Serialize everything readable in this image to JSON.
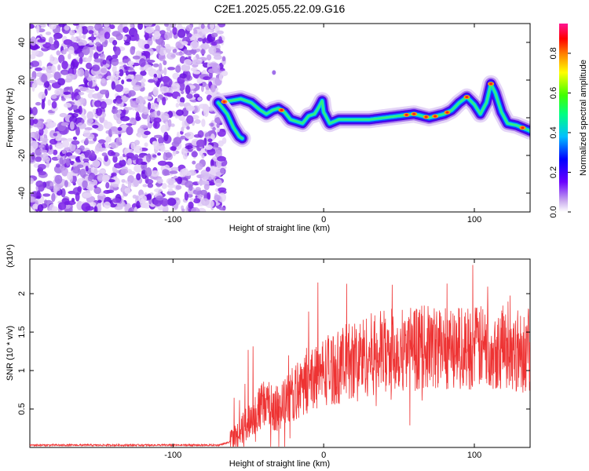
{
  "title": "C2E1.2025.055.22.09.G16",
  "chart_data": [
    {
      "type": "heatmap",
      "xlabel": "Height of straight line (km)",
      "ylabel": "Frequency (Hz)",
      "xlim": [
        -195,
        137
      ],
      "ylim": [
        -50,
        50
      ],
      "x_ticks": [
        -100,
        0,
        100
      ],
      "y_ticks": [
        -40,
        -20,
        0,
        20,
        40
      ],
      "colorbar": {
        "label": "Normalized spectral amplitude",
        "range": [
          0,
          0.95
        ],
        "ticks": [
          0.0,
          0.2,
          0.4,
          0.6,
          0.8
        ]
      },
      "noise_region_x": [
        -195,
        -70
      ],
      "ridge": {
        "x": [
          -70,
          -62,
          -55,
          -48,
          -42,
          -38,
          -34,
          -30,
          -26,
          -22,
          -18,
          -14,
          -10,
          -6,
          -3,
          -1,
          0,
          4,
          10,
          20,
          30,
          40,
          50,
          60,
          65,
          70,
          75,
          80,
          85,
          90,
          95,
          100,
          104,
          108,
          111,
          114,
          118,
          122,
          128,
          137
        ],
        "y": [
          8,
          9,
          10,
          8,
          4,
          2,
          4,
          5,
          3,
          -1,
          -2,
          -3,
          1,
          2,
          6,
          9,
          3,
          -3,
          -1,
          -1,
          -1,
          0,
          1,
          2,
          1,
          0,
          1,
          2,
          4,
          8,
          11,
          7,
          2,
          8,
          18,
          13,
          3,
          -3,
          -4,
          -7
        ]
      },
      "branch": {
        "x": [
          -70,
          -64,
          -60,
          -56,
          -54
        ],
        "y": [
          8,
          2,
          -5,
          -10,
          -11
        ]
      }
    },
    {
      "type": "line",
      "xlabel": "Height of straight line (km)",
      "ylabel": "SNR (10 * v/v)",
      "y_multiplier": "(x10⁴)",
      "xlim": [
        -195,
        137
      ],
      "ylim": [
        0,
        2.45
      ],
      "x_ticks": [
        -100,
        0,
        100
      ],
      "y_ticks": [
        0.5,
        1.0,
        1.5,
        2.0
      ],
      "color": "#ee3333",
      "envelope": {
        "x": [
          -195,
          -100,
          -70,
          -60,
          -50,
          -40,
          -30,
          -20,
          -10,
          0,
          10,
          20,
          40,
          60,
          80,
          100,
          120,
          137
        ],
        "y": [
          0.03,
          0.03,
          0.03,
          0.08,
          0.35,
          0.55,
          0.5,
          0.7,
          0.85,
          1.0,
          1.05,
          1.15,
          1.25,
          1.3,
          1.3,
          1.3,
          1.3,
          1.25
        ]
      }
    }
  ]
}
